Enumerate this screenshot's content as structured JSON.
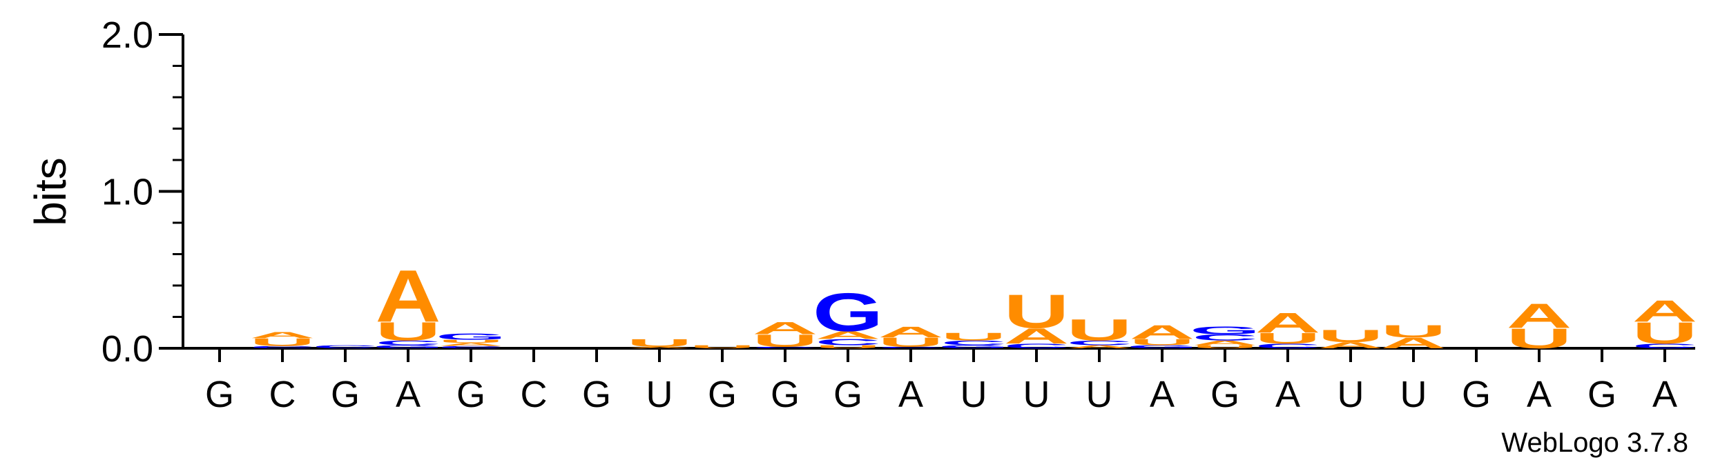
{
  "chart_data": {
    "type": "sequence-logo",
    "title": "",
    "ylabel": "bits",
    "ylim": [
      0,
      2.0
    ],
    "yticks": [
      "0.0",
      "1.0",
      "2.0"
    ],
    "positions": [
      "G",
      "C",
      "G",
      "A",
      "G",
      "C",
      "G",
      "U",
      "G",
      "G",
      "G",
      "A",
      "U",
      "U",
      "U",
      "A",
      "G",
      "A",
      "U",
      "U",
      "G",
      "A",
      "G",
      "A"
    ],
    "colors": {
      "A": "#ff8c00",
      "U": "#ff8c00",
      "G": "#0000ff",
      "C": "#0000ff"
    },
    "stacks": [
      [],
      [
        {
          "base": "C",
          "h": 0.015
        },
        {
          "base": "U",
          "h": 0.05
        },
        {
          "base": "A",
          "h": 0.04
        }
      ],
      [
        {
          "base": "C",
          "h": 0.02
        }
      ],
      [
        {
          "base": "G",
          "h": 0.02
        },
        {
          "base": "C",
          "h": 0.03
        },
        {
          "base": "U",
          "h": 0.12
        },
        {
          "base": "A",
          "h": 0.34
        }
      ],
      [
        {
          "base": "C",
          "h": 0.015
        },
        {
          "base": "A",
          "h": 0.02
        },
        {
          "base": "U",
          "h": 0.02
        },
        {
          "base": "G",
          "h": 0.04
        }
      ],
      [],
      [],
      [
        {
          "base": "A",
          "h": 0.01
        },
        {
          "base": "U",
          "h": 0.05
        }
      ],
      [
        {
          "base": "U",
          "h": 0.02
        }
      ],
      [
        {
          "base": "C",
          "h": 0.01
        },
        {
          "base": "U",
          "h": 0.08
        },
        {
          "base": "A",
          "h": 0.08
        }
      ],
      [
        {
          "base": "U",
          "h": 0.02
        },
        {
          "base": "C",
          "h": 0.04
        },
        {
          "base": "A",
          "h": 0.05
        },
        {
          "base": "G",
          "h": 0.25
        }
      ],
      [
        {
          "base": "C",
          "h": 0.01
        },
        {
          "base": "U",
          "h": 0.06
        },
        {
          "base": "A",
          "h": 0.07
        }
      ],
      [
        {
          "base": "G",
          "h": 0.02
        },
        {
          "base": "C",
          "h": 0.03
        },
        {
          "base": "U",
          "h": 0.05
        }
      ],
      [
        {
          "base": "C",
          "h": 0.03
        },
        {
          "base": "A",
          "h": 0.1
        },
        {
          "base": "U",
          "h": 0.22
        }
      ],
      [
        {
          "base": "A",
          "h": 0.02
        },
        {
          "base": "C",
          "h": 0.03
        },
        {
          "base": "U",
          "h": 0.14
        }
      ],
      [
        {
          "base": "G",
          "h": 0.02
        },
        {
          "base": "U",
          "h": 0.04
        },
        {
          "base": "A",
          "h": 0.09
        }
      ],
      [
        {
          "base": "U",
          "h": 0.02
        },
        {
          "base": "A",
          "h": 0.03
        },
        {
          "base": "C",
          "h": 0.04
        },
        {
          "base": "G",
          "h": 0.05
        }
      ],
      [
        {
          "base": "C",
          "h": 0.03
        },
        {
          "base": "U",
          "h": 0.07
        },
        {
          "base": "A",
          "h": 0.13
        }
      ],
      [
        {
          "base": "A",
          "h": 0.04
        },
        {
          "base": "U",
          "h": 0.08
        }
      ],
      [
        {
          "base": "A",
          "h": 0.07
        },
        {
          "base": "U",
          "h": 0.08
        }
      ],
      [],
      [
        {
          "base": "U",
          "h": 0.13
        },
        {
          "base": "A",
          "h": 0.16
        }
      ],
      [],
      [
        {
          "base": "C",
          "h": 0.03
        },
        {
          "base": "U",
          "h": 0.14
        },
        {
          "base": "A",
          "h": 0.14
        }
      ]
    ],
    "credit": "WebLogo 3.7.8"
  }
}
